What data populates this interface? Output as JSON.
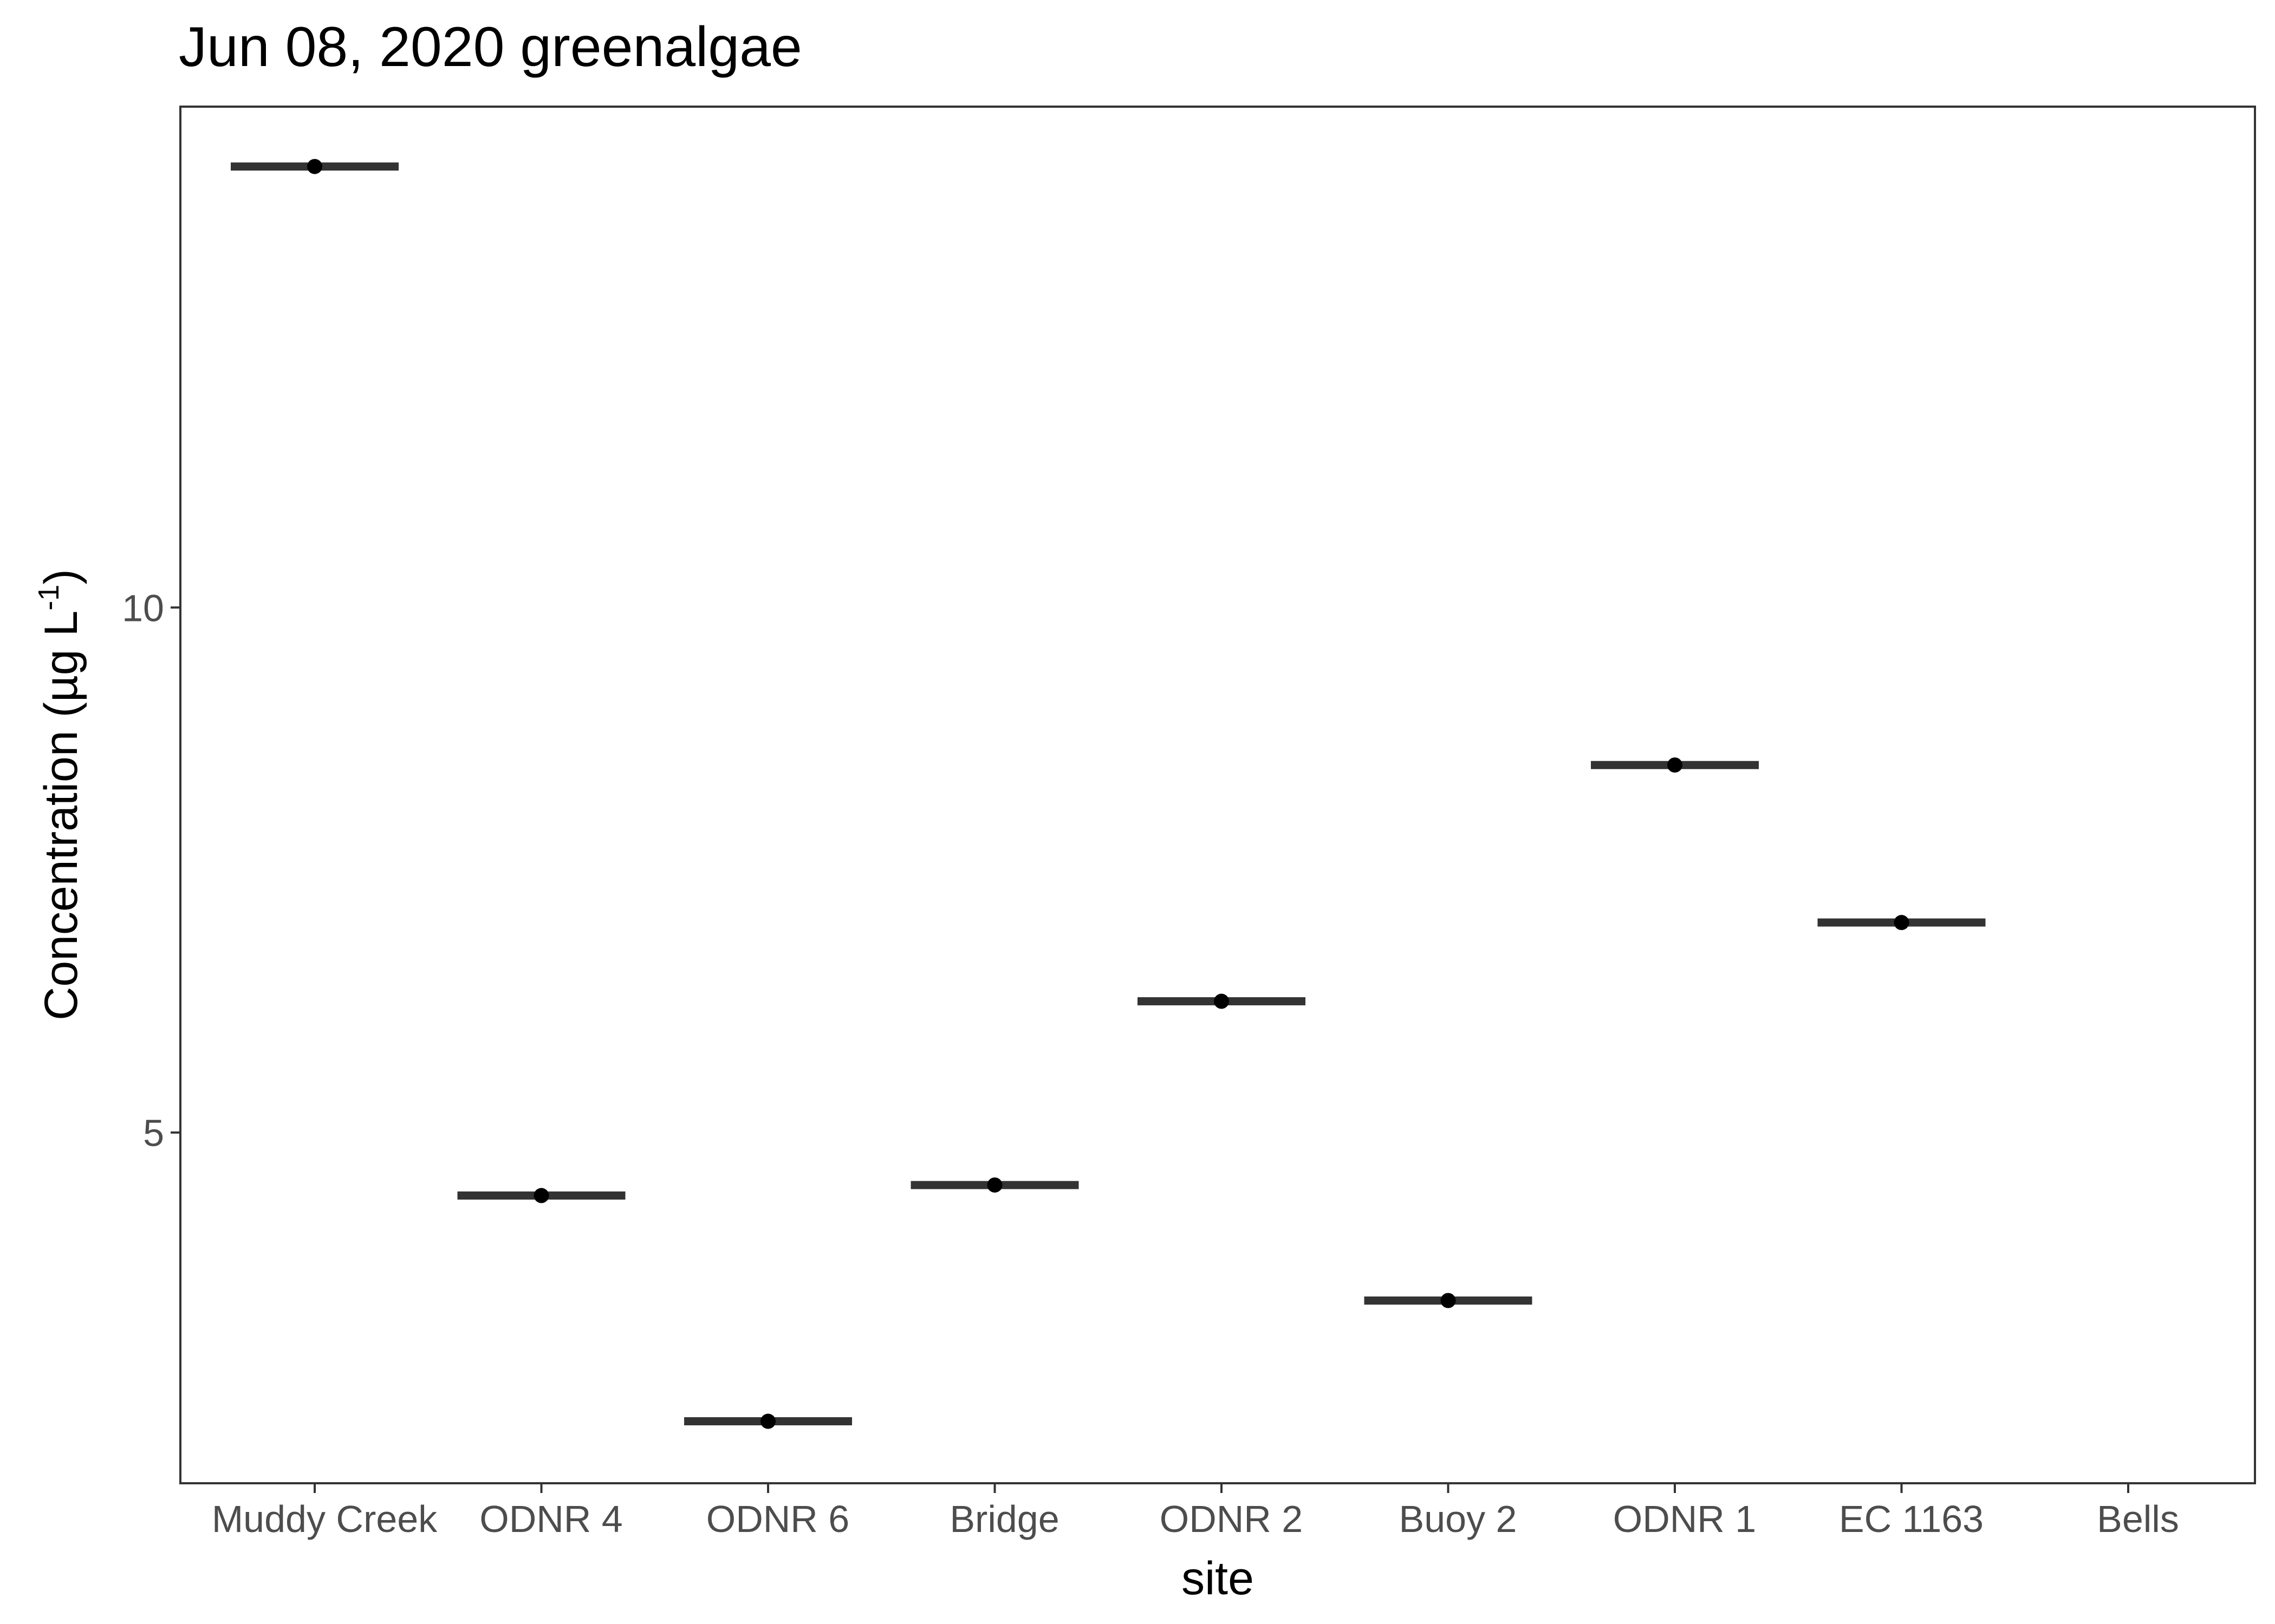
{
  "chart_data": {
    "type": "scatter",
    "title": "Jun 08, 2020 greenalgae",
    "xlabel": "site",
    "ylabel": {
      "main": "Concentration (µg L",
      "superscript": "-1",
      "close": ")"
    },
    "categories": [
      "Muddy Creek",
      "ODNR 4",
      "ODNR 6",
      "Bridge",
      "ODNR 2",
      "Buoy 2",
      "ODNR 1",
      "EC 1163",
      "Bells"
    ],
    "values": [
      14.2,
      4.4,
      2.25,
      4.5,
      6.25,
      3.4,
      8.5,
      7.0,
      null
    ],
    "y_ticks": [
      5,
      10
    ],
    "ylim": [
      1.66,
      14.77
    ],
    "grid": false,
    "legend": "none",
    "colors": {
      "point": "#000000",
      "bar": "#333333",
      "axis": "#333333",
      "tick_text": "#4d4d4d"
    }
  }
}
